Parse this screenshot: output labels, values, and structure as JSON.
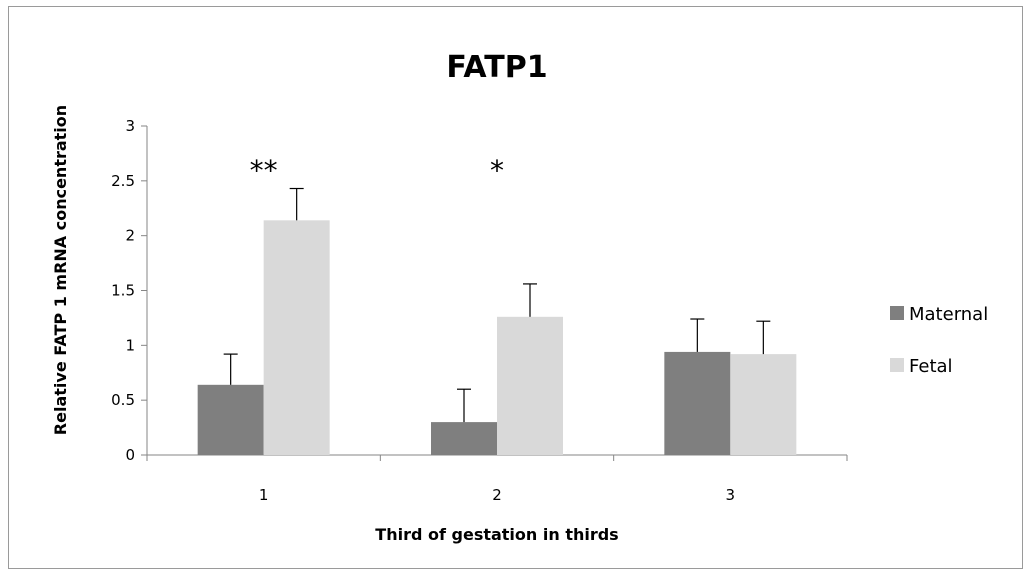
{
  "chart_data": {
    "type": "bar",
    "title": "FATP1",
    "xlabel": "Third of gestation in thirds",
    "ylabel": "Relative FATP 1 mRNA concentration",
    "categories": [
      "1",
      "2",
      "3"
    ],
    "ylim": [
      0,
      3
    ],
    "yticks": [
      "0",
      "0.5",
      "1",
      "1.5",
      "2",
      "2.5",
      "3"
    ],
    "series": [
      {
        "name": "Maternal",
        "color": "#7f7f7f",
        "values": [
          0.64,
          0.3,
          0.94
        ],
        "errors": [
          0.28,
          0.3,
          0.3
        ]
      },
      {
        "name": "Fetal",
        "color": "#d9d9d9",
        "values": [
          2.14,
          1.26,
          0.92
        ],
        "errors": [
          0.29,
          0.3,
          0.3
        ]
      }
    ],
    "annotations": [
      "**",
      "*",
      ""
    ],
    "legend_position": "right",
    "grid": false
  }
}
